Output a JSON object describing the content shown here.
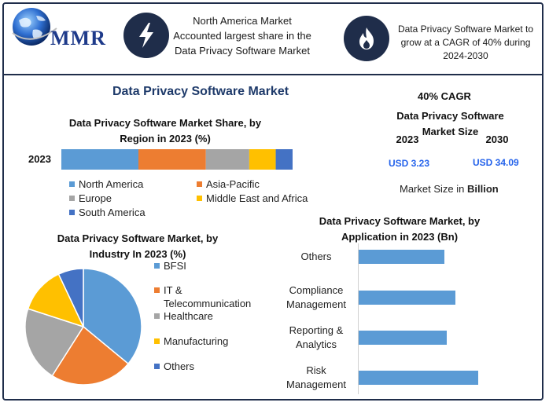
{
  "header": {
    "brand": "MMR",
    "highlight_1": "North America Market Accounted largest share in the Data Privacy Software Market",
    "highlight_2": "Data Privacy Software Market to grow at a CAGR of 40% during 2024-2030",
    "icon_1": "lightning-bolt-icon",
    "icon_2": "flame-icon",
    "colors": {
      "navy": "#1f2d4a",
      "brand_blue": "#1e3a8a"
    }
  },
  "main_title": "Data Privacy Software Market",
  "market_size": {
    "cagr": "40% CAGR",
    "title": "Data Privacy Software Market Size",
    "year_start": "2023",
    "year_end": "2030",
    "value_start": "USD 3.23",
    "value_end": "USD 34.09",
    "unit_note_prefix": "Market Size in ",
    "unit_note_bold": "Billion"
  },
  "chart_data": [
    {
      "type": "bar",
      "orientation": "horizontal-stacked",
      "title": "Data Privacy Software Market Share, by Region in 2023 (%)",
      "categories": [
        "2023"
      ],
      "series": [
        {
          "name": "North America",
          "values": [
            32
          ],
          "color": "#5b9bd5"
        },
        {
          "name": "Asia-Pacific",
          "values": [
            28
          ],
          "color": "#ed7d31"
        },
        {
          "name": "Europe",
          "values": [
            18
          ],
          "color": "#a5a5a5"
        },
        {
          "name": "Middle East and Africa",
          "values": [
            11
          ],
          "color": "#ffc000"
        },
        {
          "name": "South America",
          "values": [
            7
          ],
          "color": "#4472c4"
        }
      ],
      "legend_position": "bottom"
    },
    {
      "type": "pie",
      "title": "Data Privacy Software Market, by Industry In 2023 (%)",
      "slices": [
        {
          "name": "BFSI",
          "value": 36,
          "color": "#5b9bd5"
        },
        {
          "name": "IT & Telecommunication",
          "value": 23,
          "color": "#ed7d31"
        },
        {
          "name": "Healthcare",
          "value": 21,
          "color": "#a5a5a5"
        },
        {
          "name": "Manufacturing",
          "value": 13,
          "color": "#ffc000"
        },
        {
          "name": "Others",
          "value": 7,
          "color": "#4472c4"
        }
      ],
      "legend_position": "right"
    },
    {
      "type": "bar",
      "orientation": "horizontal",
      "title": "Data Privacy Software Market, by Application in 2023 (Bn)",
      "categories": [
        "Others",
        "Compliance Management",
        "Reporting & Analytics",
        "Risk Management"
      ],
      "category_lines": [
        [
          "Others"
        ],
        [
          "Compliance",
          "Management"
        ],
        [
          "Reporting &",
          "Analytics"
        ],
        [
          "Risk",
          "Management"
        ]
      ],
      "values": [
        0.72,
        0.81,
        0.74,
        1.0
      ],
      "color": "#5b9bd5"
    }
  ]
}
